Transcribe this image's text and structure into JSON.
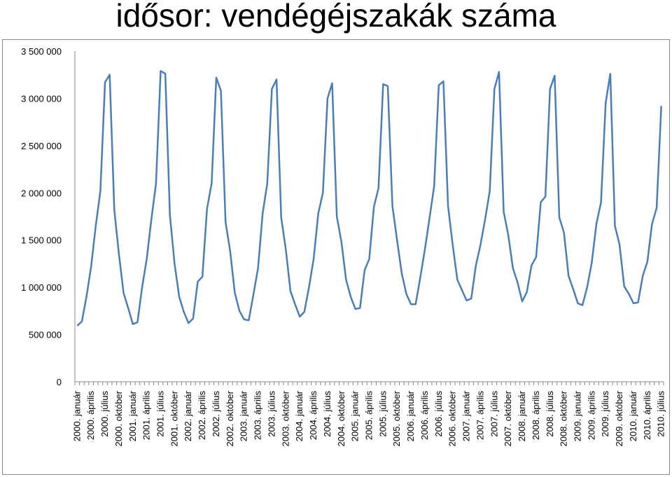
{
  "chart_data": {
    "type": "line",
    "title": "idősor: vendégéjszakák száma",
    "color": "#4a7ebb",
    "grid": false,
    "ylim": [
      0,
      3500000
    ],
    "yticks": [
      0,
      {
        "value": 500000,
        "label": "500 000"
      },
      {
        "value": 1000000,
        "label": "1 000 000"
      },
      {
        "value": 1500000,
        "label": "1 500 000"
      },
      {
        "value": 2000000,
        "label": "2 000 000"
      },
      {
        "value": 2500000,
        "label": "2 500 000"
      },
      {
        "value": 3000000,
        "label": "3 000 000"
      },
      {
        "value": 3500000,
        "label": "3 500 000"
      }
    ],
    "categories": [
      "2000. január",
      null,
      null,
      "2000. április",
      null,
      null,
      "2000. július",
      null,
      null,
      "2000. október",
      null,
      null,
      "2001. január",
      null,
      null,
      "2001. április",
      null,
      null,
      "2001. július",
      null,
      null,
      "2001. október",
      null,
      null,
      "2002. január",
      null,
      null,
      "2002. április",
      null,
      null,
      "2002. július",
      null,
      null,
      "2002. október",
      null,
      null,
      "2003. január",
      null,
      null,
      "2003. április",
      null,
      null,
      "2003. július",
      null,
      null,
      "2003. október",
      null,
      null,
      "2004. január",
      null,
      null,
      "2004. április",
      null,
      null,
      "2004. július",
      null,
      null,
      "2004. október",
      null,
      null,
      "2005. január",
      null,
      null,
      "2005. április",
      null,
      null,
      "2005. július",
      null,
      null,
      "2005. október",
      null,
      null,
      "2006. január",
      null,
      null,
      "2006. április",
      null,
      null,
      "2006. július",
      null,
      null,
      "2006. október",
      null,
      null,
      "2007. január",
      null,
      null,
      "2007. április",
      null,
      null,
      "2007. július",
      null,
      null,
      "2007. október",
      null,
      null,
      "2008. január",
      null,
      null,
      "2008. április",
      null,
      null,
      "2008. július",
      null,
      null,
      "2008. október",
      null,
      null,
      "2009. január",
      null,
      null,
      "2009. április",
      null,
      null,
      "2009. július",
      null,
      null,
      "2009. október",
      null,
      null,
      "2010. január",
      null,
      null,
      "2010. április",
      null,
      null,
      "2010. július"
    ],
    "values": [
      593000,
      638000,
      900000,
      1220000,
      1650000,
      2020000,
      3170000,
      3250000,
      1820000,
      1350000,
      940000,
      780000,
      610000,
      630000,
      1000000,
      1300000,
      1720000,
      2100000,
      3290000,
      3260000,
      1760000,
      1250000,
      900000,
      740000,
      620000,
      670000,
      1060000,
      1110000,
      1830000,
      2100000,
      3220000,
      3080000,
      1690000,
      1380000,
      940000,
      750000,
      660000,
      650000,
      920000,
      1200000,
      1780000,
      2100000,
      3100000,
      3200000,
      1740000,
      1400000,
      960000,
      820000,
      690000,
      740000,
      1000000,
      1300000,
      1780000,
      2000000,
      3000000,
      3160000,
      1750000,
      1480000,
      1080000,
      900000,
      770000,
      780000,
      1180000,
      1300000,
      1850000,
      2050000,
      3150000,
      3130000,
      1860000,
      1500000,
      1150000,
      930000,
      820000,
      820000,
      1100000,
      1400000,
      1730000,
      2070000,
      3140000,
      3180000,
      1860000,
      1450000,
      1080000,
      970000,
      860000,
      880000,
      1230000,
      1450000,
      1720000,
      2020000,
      3100000,
      3280000,
      1800000,
      1550000,
      1200000,
      1050000,
      850000,
      950000,
      1230000,
      1320000,
      1900000,
      1960000,
      3100000,
      3240000,
      1740000,
      1580000,
      1120000,
      980000,
      830000,
      810000,
      1000000,
      1260000,
      1670000,
      1900000,
      2950000,
      3260000,
      1650000,
      1450000,
      1010000,
      930000,
      830000,
      840000,
      1120000,
      1270000,
      1670000,
      1840000,
      2920000
    ]
  }
}
